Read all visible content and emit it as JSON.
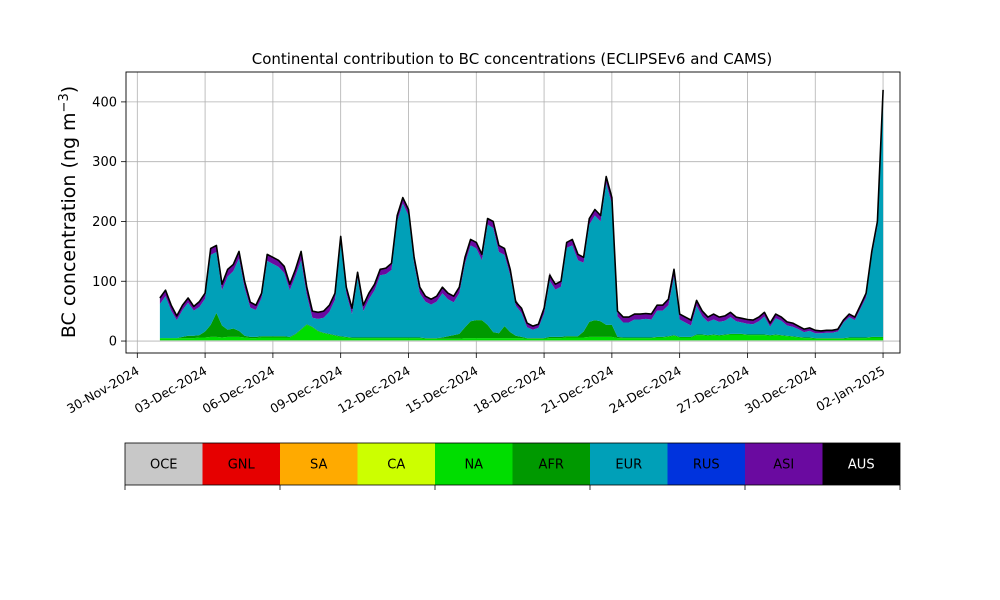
{
  "chart_data": {
    "type": "area",
    "title": "Continental contribution to BC concentrations (ECLIPSEv6 and CAMS)",
    "ylabel": "BC concentration (ng m",
    "ylabel_exponent": "−3",
    "ylabel_close": ")",
    "xlabel": "",
    "ylim": [
      -20,
      450
    ],
    "xlim": [
      "2024-11-29T12:00",
      "2025-01-02T18:00"
    ],
    "grid": true,
    "y_ticks": [
      0,
      100,
      200,
      300,
      400
    ],
    "x_ticks": [
      "30-Nov-2024",
      "03-Dec-2024",
      "06-Dec-2024",
      "09-Dec-2024",
      "12-Dec-2024",
      "15-Dec-2024",
      "18-Dec-2024",
      "21-Dec-2024",
      "24-Dec-2024",
      "27-Dec-2024",
      "30-Dec-2024",
      "02-Jan-2025"
    ],
    "stack_order": [
      "OCE",
      "GNL",
      "SA",
      "CA",
      "NA",
      "AFR",
      "EUR",
      "RUS",
      "ASI",
      "AUS"
    ],
    "x": [
      "2024-12-01T00",
      "2024-12-01T06",
      "2024-12-01T12",
      "2024-12-01T18",
      "2024-12-02T00",
      "2024-12-02T06",
      "2024-12-02T12",
      "2024-12-02T18",
      "2024-12-03T00",
      "2024-12-03T06",
      "2024-12-03T12",
      "2024-12-03T18",
      "2024-12-04T00",
      "2024-12-04T06",
      "2024-12-04T12",
      "2024-12-04T18",
      "2024-12-05T00",
      "2024-12-05T06",
      "2024-12-05T12",
      "2024-12-05T18",
      "2024-12-06T00",
      "2024-12-06T06",
      "2024-12-06T12",
      "2024-12-06T18",
      "2024-12-07T00",
      "2024-12-07T06",
      "2024-12-07T12",
      "2024-12-07T18",
      "2024-12-08T00",
      "2024-12-08T06",
      "2024-12-08T12",
      "2024-12-08T18",
      "2024-12-09T00",
      "2024-12-09T06",
      "2024-12-09T12",
      "2024-12-09T18",
      "2024-12-10T00",
      "2024-12-10T06",
      "2024-12-10T12",
      "2024-12-10T18",
      "2024-12-11T00",
      "2024-12-11T06",
      "2024-12-11T12",
      "2024-12-11T18",
      "2024-12-12T00",
      "2024-12-12T06",
      "2024-12-12T12",
      "2024-12-12T18",
      "2024-12-13T00",
      "2024-12-13T06",
      "2024-12-13T12",
      "2024-12-13T18",
      "2024-12-14T00",
      "2024-12-14T06",
      "2024-12-14T12",
      "2024-12-14T18",
      "2024-12-15T00",
      "2024-12-15T06",
      "2024-12-15T12",
      "2024-12-15T18",
      "2024-12-16T00",
      "2024-12-16T06",
      "2024-12-16T12",
      "2024-12-16T18",
      "2024-12-17T00",
      "2024-12-17T06",
      "2024-12-17T12",
      "2024-12-17T18",
      "2024-12-18T00",
      "2024-12-18T06",
      "2024-12-18T12",
      "2024-12-18T18",
      "2024-12-19T00",
      "2024-12-19T06",
      "2024-12-19T12",
      "2024-12-19T18",
      "2024-12-20T00",
      "2024-12-20T06",
      "2024-12-20T12",
      "2024-12-20T18",
      "2024-12-21T00",
      "2024-12-21T06",
      "2024-12-21T12",
      "2024-12-21T18",
      "2024-12-22T00",
      "2024-12-22T06",
      "2024-12-22T12",
      "2024-12-22T18",
      "2024-12-23T00",
      "2024-12-23T06",
      "2024-12-23T12",
      "2024-12-23T18",
      "2024-12-24T00",
      "2024-12-24T06",
      "2024-12-24T12",
      "2024-12-24T18",
      "2024-12-25T00",
      "2024-12-25T06",
      "2024-12-25T12",
      "2024-12-25T18",
      "2024-12-26T00",
      "2024-12-26T06",
      "2024-12-26T12",
      "2024-12-26T18",
      "2024-12-27T00",
      "2024-12-27T06",
      "2024-12-27T12",
      "2024-12-27T18",
      "2024-12-28T00",
      "2024-12-28T06",
      "2024-12-28T12",
      "2024-12-28T18",
      "2024-12-29T00",
      "2024-12-29T06",
      "2024-12-29T12",
      "2024-12-29T18",
      "2024-12-30T00",
      "2024-12-30T06",
      "2024-12-30T12",
      "2024-12-30T18",
      "2024-12-31T00",
      "2024-12-31T06",
      "2024-12-31T12",
      "2024-12-31T18",
      "2025-01-01T00",
      "2025-01-01T06",
      "2025-01-01T12",
      "2025-01-01T18",
      "2025-01-02T00"
    ],
    "total": [
      72,
      85,
      60,
      42,
      60,
      72,
      58,
      66,
      80,
      155,
      160,
      95,
      120,
      128,
      150,
      100,
      65,
      60,
      80,
      145,
      140,
      135,
      125,
      95,
      120,
      150,
      90,
      50,
      48,
      50,
      60,
      80,
      175,
      90,
      55,
      115,
      60,
      80,
      95,
      120,
      122,
      130,
      210,
      240,
      220,
      140,
      90,
      75,
      70,
      75,
      90,
      80,
      75,
      90,
      140,
      170,
      165,
      145,
      205,
      200,
      160,
      155,
      120,
      65,
      55,
      30,
      25,
      28,
      55,
      110,
      95,
      100,
      165,
      170,
      145,
      140,
      205,
      220,
      210,
      275,
      240,
      50,
      40,
      40,
      45,
      45,
      46,
      45,
      60,
      60,
      70,
      120,
      45,
      40,
      35,
      68,
      50,
      40,
      45,
      40,
      42,
      48,
      40,
      38,
      36,
      35,
      40,
      48,
      30,
      45,
      40,
      32,
      30,
      25,
      20,
      22,
      18,
      17,
      18,
      18,
      20,
      35,
      45,
      40,
      60,
      80,
      150,
      200,
      420
    ],
    "series": [
      {
        "name": "OCE",
        "color": "#cccccc",
        "values": [
          1,
          1,
          1,
          1,
          1,
          1,
          1,
          1,
          1,
          1,
          1,
          1,
          1,
          1,
          1,
          1,
          1,
          1,
          1,
          1,
          1,
          1,
          1,
          1,
          1,
          1,
          1,
          1,
          1,
          1,
          1,
          1,
          1,
          1,
          1,
          1,
          1,
          1,
          1,
          1,
          1,
          1,
          1,
          1,
          1,
          1,
          1,
          1,
          1,
          1,
          1,
          1,
          1,
          1,
          1,
          1,
          1,
          1,
          1,
          1,
          1,
          1,
          1,
          1,
          1,
          1,
          1,
          1,
          1,
          1,
          1,
          1,
          1,
          1,
          1,
          1,
          1,
          1,
          1,
          1,
          1,
          1,
          1,
          1,
          1,
          1,
          1,
          1,
          1,
          1,
          1,
          1,
          1,
          1,
          1,
          1,
          1,
          1,
          1,
          1,
          1,
          1,
          1,
          1,
          1,
          1,
          1,
          1,
          1,
          1,
          1,
          1,
          1,
          1,
          1,
          1,
          1,
          1,
          1,
          1,
          1,
          1,
          1,
          1,
          1,
          1,
          1,
          1,
          1
        ]
      },
      {
        "name": "NA",
        "color": "#00dd00",
        "values": [
          4,
          4,
          4,
          4,
          4,
          4,
          4,
          5,
          5,
          6,
          6,
          5,
          6,
          6,
          6,
          5,
          4,
          4,
          5,
          5,
          5,
          5,
          5,
          5,
          10,
          18,
          26,
          22,
          15,
          12,
          10,
          8,
          6,
          5,
          4,
          4,
          4,
          4,
          4,
          4,
          4,
          4,
          4,
          4,
          4,
          4,
          4,
          3,
          3,
          3,
          3,
          3,
          3,
          3,
          4,
          4,
          4,
          4,
          4,
          4,
          4,
          4,
          4,
          4,
          4,
          3,
          3,
          3,
          3,
          4,
          4,
          4,
          5,
          5,
          5,
          5,
          6,
          6,
          6,
          6,
          6,
          4,
          4,
          4,
          4,
          4,
          4,
          4,
          5,
          5,
          6,
          8,
          5,
          5,
          5,
          9,
          9,
          8,
          9,
          8,
          9,
          10,
          10,
          10,
          9,
          9,
          9,
          9,
          8,
          9,
          8,
          7,
          6,
          5,
          4,
          4,
          3,
          3,
          3,
          3,
          3,
          3,
          4,
          4,
          4,
          4,
          5,
          5,
          5
        ]
      },
      {
        "name": "AFR",
        "color": "#009900",
        "values": [
          0,
          0,
          0,
          0,
          2,
          4,
          4,
          4,
          10,
          20,
          40,
          20,
          12,
          14,
          10,
          3,
          2,
          2,
          2,
          2,
          2,
          2,
          2,
          1,
          1,
          1,
          1,
          1,
          1,
          1,
          1,
          1,
          1,
          1,
          1,
          1,
          1,
          1,
          1,
          1,
          1,
          1,
          1,
          1,
          1,
          1,
          1,
          1,
          1,
          1,
          2,
          4,
          6,
          8,
          18,
          28,
          30,
          30,
          22,
          10,
          8,
          20,
          10,
          4,
          2,
          1,
          1,
          1,
          1,
          2,
          2,
          2,
          2,
          2,
          2,
          10,
          25,
          28,
          26,
          20,
          20,
          2,
          1,
          1,
          1,
          1,
          1,
          1,
          1,
          1,
          1,
          1,
          1,
          1,
          1,
          1,
          1,
          1,
          1,
          1,
          1,
          1,
          1,
          1,
          1,
          1,
          1,
          1,
          1,
          1,
          1,
          1,
          1,
          1,
          1,
          1,
          1,
          1,
          1,
          1,
          1,
          1,
          1,
          1,
          1,
          1,
          1,
          1,
          1
        ]
      },
      {
        "name": "EUR",
        "color": "#00a0b8",
        "values": [
          57,
          70,
          46,
          30,
          45,
          55,
          42,
          47,
          55,
          117,
          102,
          59,
          89,
          96,
          121,
          80,
          49,
          45,
          64,
          126,
          121,
          116,
          106,
          78,
          97,
          115,
          49,
          15,
          20,
          25,
          37,
          59,
          157,
          73,
          39,
          100,
          44,
          64,
          79,
          104,
          106,
          113,
          194,
          224,
          204,
          124,
          74,
          61,
          56,
          61,
          74,
          62,
          55,
          68,
          107,
          127,
          120,
          100,
          168,
          174,
          136,
          119,
          95,
          50,
          40,
          18,
          14,
          17,
          41,
          94,
          79,
          84,
          148,
          152,
          127,
          115,
          163,
          175,
          167,
          237,
          202,
          34,
          25,
          25,
          30,
          30,
          31,
          30,
          44,
          44,
          52,
          98,
          29,
          24,
          19,
          48,
          30,
          22,
          25,
          22,
          23,
          28,
          21,
          19,
          18,
          17,
          22,
          30,
          14,
          27,
          24,
          17,
          16,
          13,
          9,
          11,
          8,
          8,
          9,
          9,
          11,
          26,
          34,
          29,
          48,
          67,
          136,
          185,
          402
        ]
      },
      {
        "name": "ASI",
        "color": "#6a0aa0",
        "values": [
          9,
          9,
          8,
          6,
          7,
          7,
          6,
          8,
          8,
          10,
          10,
          9,
          11,
          10,
          11,
          10,
          8,
          7,
          7,
          10,
          10,
          10,
          10,
          9,
          10,
          14,
          12,
          10,
          10,
          10,
          10,
          10,
          9,
          9,
          9,
          8,
          9,
          9,
          9,
          9,
          9,
          10,
          9,
          9,
          9,
          9,
          9,
          9,
          8,
          9,
          9,
          9,
          9,
          9,
          9,
          9,
          9,
          9,
          9,
          10,
          10,
          10,
          9,
          9,
          7,
          6,
          6,
          6,
          8,
          12,
          8,
          8,
          8,
          9,
          9,
          8,
          9,
          9,
          9,
          10,
          10,
          8,
          8,
          8,
          8,
          8,
          8,
          8,
          8,
          8,
          9,
          11,
          8,
          8,
          8,
          9,
          8,
          7,
          8,
          8,
          7,
          7,
          6,
          6,
          6,
          6,
          6,
          6,
          5,
          6,
          5,
          5,
          5,
          4,
          4,
          4,
          4,
          3,
          3,
          3,
          3,
          3,
          4,
          4,
          5,
          6,
          6,
          7,
          10
        ]
      },
      {
        "name": "AUS",
        "color": "#000000",
        "values": [
          1,
          1,
          1,
          1,
          1,
          1,
          1,
          1,
          1,
          1,
          1,
          1,
          1,
          1,
          1,
          1,
          1,
          1,
          1,
          1,
          1,
          1,
          1,
          1,
          1,
          1,
          1,
          1,
          1,
          1,
          1,
          1,
          1,
          1,
          1,
          1,
          1,
          1,
          1,
          1,
          1,
          1,
          1,
          1,
          1,
          1,
          1,
          1,
          1,
          1,
          1,
          1,
          1,
          1,
          1,
          1,
          1,
          1,
          1,
          1,
          1,
          1,
          1,
          1,
          1,
          1,
          1,
          1,
          1,
          1,
          1,
          1,
          1,
          1,
          1,
          1,
          1,
          1,
          1,
          1,
          1,
          1,
          1,
          1,
          1,
          1,
          1,
          1,
          1,
          1,
          1,
          1,
          1,
          1,
          1,
          1,
          1,
          1,
          1,
          1,
          1,
          1,
          1,
          1,
          1,
          1,
          1,
          1,
          1,
          1,
          1,
          1,
          1,
          1,
          1,
          1,
          1,
          1,
          1,
          1,
          1,
          1,
          1,
          1,
          1,
          1,
          1,
          1,
          1
        ]
      }
    ],
    "legend": [
      {
        "name": "OCE",
        "color": "#c8c8c8"
      },
      {
        "name": "GNL",
        "color": "#e60000"
      },
      {
        "name": "SA",
        "color": "#ffaa00"
      },
      {
        "name": "CA",
        "color": "#ccff00"
      },
      {
        "name": "NA",
        "color": "#00dd00"
      },
      {
        "name": "AFR",
        "color": "#009900"
      },
      {
        "name": "EUR",
        "color": "#00a0b8"
      },
      {
        "name": "RUS",
        "color": "#0033dd"
      },
      {
        "name": "ASI",
        "color": "#6a0aa0"
      },
      {
        "name": "AUS",
        "color": "#000000"
      }
    ],
    "legend_placement": "below"
  }
}
